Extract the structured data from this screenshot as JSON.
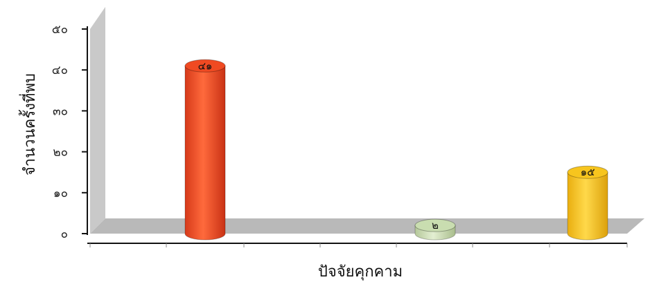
{
  "chart_data": {
    "type": "bar",
    "categories": [
      "",
      "",
      ""
    ],
    "values": [
      41,
      2,
      15
    ],
    "data_labels": [
      "๔๑",
      "๒",
      "๑๕"
    ],
    "ylabel": "จำนวนครั้งที่พบ",
    "xlabel": "ปัจจัยคุกคาม",
    "ylim": [
      0,
      50
    ],
    "yticks": [
      0,
      10,
      20,
      30,
      40,
      50
    ],
    "ytick_labels": [
      "๐",
      "๑๐",
      "๒๐",
      "๓๐",
      "๔๐",
      "๕๐"
    ],
    "grid": false,
    "legend": "none",
    "style": "3d-cylinder",
    "colors": [
      "#f04a22",
      "#c9ddb0",
      "#f7c51e"
    ]
  }
}
